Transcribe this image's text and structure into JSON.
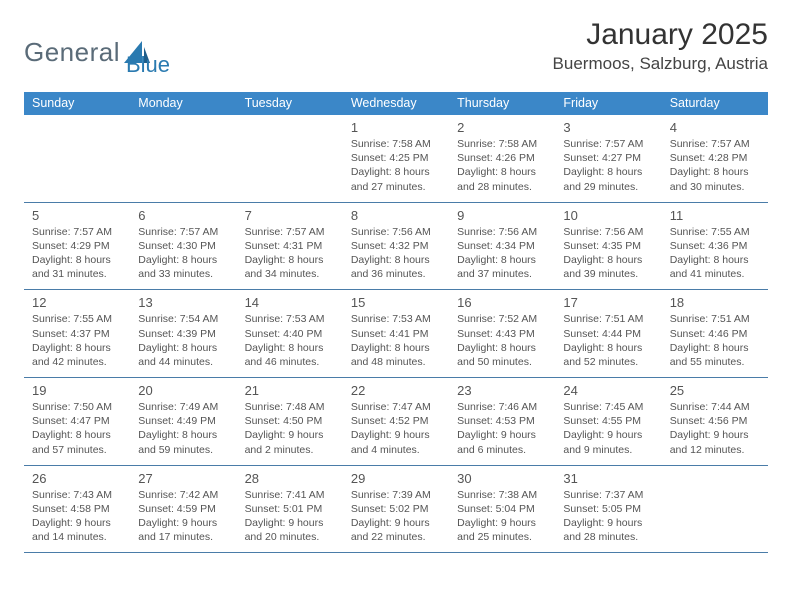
{
  "brand": {
    "text1": "General",
    "text2": "Blue"
  },
  "title": "January 2025",
  "location": "Buermoos, Salzburg, Austria",
  "colors": {
    "header_bg": "#3b87c8",
    "header_text": "#ffffff",
    "week_border": "#4a7ca8",
    "body_text": "#555555",
    "logo_gray": "#5a6b78",
    "logo_blue": "#2a7ab0",
    "background": "#ffffff"
  },
  "dayNames": [
    "Sunday",
    "Monday",
    "Tuesday",
    "Wednesday",
    "Thursday",
    "Friday",
    "Saturday"
  ],
  "weeks": [
    [
      null,
      null,
      null,
      {
        "n": "1",
        "sr": "Sunrise: 7:58 AM",
        "ss": "Sunset: 4:25 PM",
        "d1": "Daylight: 8 hours",
        "d2": "and 27 minutes."
      },
      {
        "n": "2",
        "sr": "Sunrise: 7:58 AM",
        "ss": "Sunset: 4:26 PM",
        "d1": "Daylight: 8 hours",
        "d2": "and 28 minutes."
      },
      {
        "n": "3",
        "sr": "Sunrise: 7:57 AM",
        "ss": "Sunset: 4:27 PM",
        "d1": "Daylight: 8 hours",
        "d2": "and 29 minutes."
      },
      {
        "n": "4",
        "sr": "Sunrise: 7:57 AM",
        "ss": "Sunset: 4:28 PM",
        "d1": "Daylight: 8 hours",
        "d2": "and 30 minutes."
      }
    ],
    [
      {
        "n": "5",
        "sr": "Sunrise: 7:57 AM",
        "ss": "Sunset: 4:29 PM",
        "d1": "Daylight: 8 hours",
        "d2": "and 31 minutes."
      },
      {
        "n": "6",
        "sr": "Sunrise: 7:57 AM",
        "ss": "Sunset: 4:30 PM",
        "d1": "Daylight: 8 hours",
        "d2": "and 33 minutes."
      },
      {
        "n": "7",
        "sr": "Sunrise: 7:57 AM",
        "ss": "Sunset: 4:31 PM",
        "d1": "Daylight: 8 hours",
        "d2": "and 34 minutes."
      },
      {
        "n": "8",
        "sr": "Sunrise: 7:56 AM",
        "ss": "Sunset: 4:32 PM",
        "d1": "Daylight: 8 hours",
        "d2": "and 36 minutes."
      },
      {
        "n": "9",
        "sr": "Sunrise: 7:56 AM",
        "ss": "Sunset: 4:34 PM",
        "d1": "Daylight: 8 hours",
        "d2": "and 37 minutes."
      },
      {
        "n": "10",
        "sr": "Sunrise: 7:56 AM",
        "ss": "Sunset: 4:35 PM",
        "d1": "Daylight: 8 hours",
        "d2": "and 39 minutes."
      },
      {
        "n": "11",
        "sr": "Sunrise: 7:55 AM",
        "ss": "Sunset: 4:36 PM",
        "d1": "Daylight: 8 hours",
        "d2": "and 41 minutes."
      }
    ],
    [
      {
        "n": "12",
        "sr": "Sunrise: 7:55 AM",
        "ss": "Sunset: 4:37 PM",
        "d1": "Daylight: 8 hours",
        "d2": "and 42 minutes."
      },
      {
        "n": "13",
        "sr": "Sunrise: 7:54 AM",
        "ss": "Sunset: 4:39 PM",
        "d1": "Daylight: 8 hours",
        "d2": "and 44 minutes."
      },
      {
        "n": "14",
        "sr": "Sunrise: 7:53 AM",
        "ss": "Sunset: 4:40 PM",
        "d1": "Daylight: 8 hours",
        "d2": "and 46 minutes."
      },
      {
        "n": "15",
        "sr": "Sunrise: 7:53 AM",
        "ss": "Sunset: 4:41 PM",
        "d1": "Daylight: 8 hours",
        "d2": "and 48 minutes."
      },
      {
        "n": "16",
        "sr": "Sunrise: 7:52 AM",
        "ss": "Sunset: 4:43 PM",
        "d1": "Daylight: 8 hours",
        "d2": "and 50 minutes."
      },
      {
        "n": "17",
        "sr": "Sunrise: 7:51 AM",
        "ss": "Sunset: 4:44 PM",
        "d1": "Daylight: 8 hours",
        "d2": "and 52 minutes."
      },
      {
        "n": "18",
        "sr": "Sunrise: 7:51 AM",
        "ss": "Sunset: 4:46 PM",
        "d1": "Daylight: 8 hours",
        "d2": "and 55 minutes."
      }
    ],
    [
      {
        "n": "19",
        "sr": "Sunrise: 7:50 AM",
        "ss": "Sunset: 4:47 PM",
        "d1": "Daylight: 8 hours",
        "d2": "and 57 minutes."
      },
      {
        "n": "20",
        "sr": "Sunrise: 7:49 AM",
        "ss": "Sunset: 4:49 PM",
        "d1": "Daylight: 8 hours",
        "d2": "and 59 minutes."
      },
      {
        "n": "21",
        "sr": "Sunrise: 7:48 AM",
        "ss": "Sunset: 4:50 PM",
        "d1": "Daylight: 9 hours",
        "d2": "and 2 minutes."
      },
      {
        "n": "22",
        "sr": "Sunrise: 7:47 AM",
        "ss": "Sunset: 4:52 PM",
        "d1": "Daylight: 9 hours",
        "d2": "and 4 minutes."
      },
      {
        "n": "23",
        "sr": "Sunrise: 7:46 AM",
        "ss": "Sunset: 4:53 PM",
        "d1": "Daylight: 9 hours",
        "d2": "and 6 minutes."
      },
      {
        "n": "24",
        "sr": "Sunrise: 7:45 AM",
        "ss": "Sunset: 4:55 PM",
        "d1": "Daylight: 9 hours",
        "d2": "and 9 minutes."
      },
      {
        "n": "25",
        "sr": "Sunrise: 7:44 AM",
        "ss": "Sunset: 4:56 PM",
        "d1": "Daylight: 9 hours",
        "d2": "and 12 minutes."
      }
    ],
    [
      {
        "n": "26",
        "sr": "Sunrise: 7:43 AM",
        "ss": "Sunset: 4:58 PM",
        "d1": "Daylight: 9 hours",
        "d2": "and 14 minutes."
      },
      {
        "n": "27",
        "sr": "Sunrise: 7:42 AM",
        "ss": "Sunset: 4:59 PM",
        "d1": "Daylight: 9 hours",
        "d2": "and 17 minutes."
      },
      {
        "n": "28",
        "sr": "Sunrise: 7:41 AM",
        "ss": "Sunset: 5:01 PM",
        "d1": "Daylight: 9 hours",
        "d2": "and 20 minutes."
      },
      {
        "n": "29",
        "sr": "Sunrise: 7:39 AM",
        "ss": "Sunset: 5:02 PM",
        "d1": "Daylight: 9 hours",
        "d2": "and 22 minutes."
      },
      {
        "n": "30",
        "sr": "Sunrise: 7:38 AM",
        "ss": "Sunset: 5:04 PM",
        "d1": "Daylight: 9 hours",
        "d2": "and 25 minutes."
      },
      {
        "n": "31",
        "sr": "Sunrise: 7:37 AM",
        "ss": "Sunset: 5:05 PM",
        "d1": "Daylight: 9 hours",
        "d2": "and 28 minutes."
      },
      null
    ]
  ]
}
